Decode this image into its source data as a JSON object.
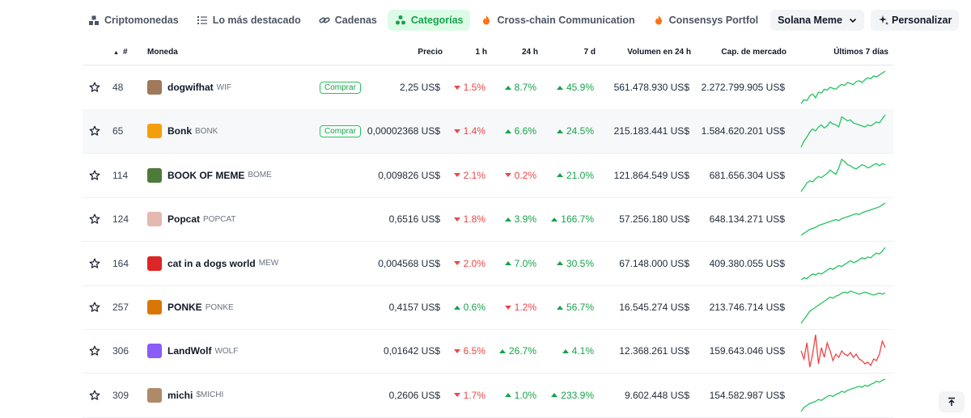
{
  "tabs": [
    {
      "label": "Criptomonedas",
      "icon": "cryptocurrencies-icon"
    },
    {
      "label": "Lo más destacado",
      "icon": "list-icon"
    },
    {
      "label": "Cadenas",
      "icon": "chain-link-icon"
    },
    {
      "label": "Categorías",
      "icon": "categories-icon",
      "active": true
    },
    {
      "label": "Cross-chain Communication",
      "icon": "fire-icon"
    },
    {
      "label": "Consensys Portfol",
      "icon": "fire-icon"
    }
  ],
  "dropdown": {
    "label": "Solana Meme"
  },
  "customize": {
    "label": "Personalizar"
  },
  "table": {
    "headers": {
      "rank": "#",
      "coin": "Moneda",
      "price": "Precio",
      "h1": "1 h",
      "h24": "24 h",
      "d7": "7 d",
      "volume": "Volumen en 24 h",
      "market_cap": "Cap. de mercado",
      "last7": "Últimos 7 días"
    },
    "buy_label": "Comprar",
    "rows": [
      {
        "rank": "48",
        "name": "dogwifhat",
        "symbol": "WIF",
        "buy": true,
        "price": "2,25 US$",
        "h1": "1.5%",
        "h1_dir": "down",
        "h24": "8.7%",
        "h24_dir": "up",
        "d7": "45.9%",
        "d7_dir": "up",
        "volume": "561.478.930 US$",
        "cap": "2.272.799.905 US$",
        "trend": "up",
        "spark": [
          30,
          34,
          33,
          38,
          40,
          36,
          42,
          41,
          45,
          44,
          47,
          46,
          45,
          48,
          50,
          49,
          52,
          51,
          50,
          53,
          54,
          52,
          55,
          57,
          56,
          59,
          58,
          60,
          62,
          64
        ]
      },
      {
        "rank": "65",
        "name": "Bonk",
        "symbol": "BONK",
        "buy": true,
        "price": "0,00002368 US$",
        "h1": "1.4%",
        "h1_dir": "down",
        "h24": "6.6%",
        "h24_dir": "up",
        "d7": "24.5%",
        "d7_dir": "up",
        "volume": "215.183.441 US$",
        "cap": "1.584.620.201 US$",
        "trend": "up",
        "spark": [
          30,
          36,
          40,
          45,
          48,
          46,
          50,
          52,
          49,
          51,
          55,
          53,
          52,
          50,
          60,
          58,
          56,
          57,
          54,
          53,
          52,
          51,
          50,
          52,
          51,
          53,
          55,
          54,
          58,
          62
        ]
      },
      {
        "rank": "114",
        "name": "BOOK OF MEME",
        "symbol": "BOME",
        "buy": false,
        "price": "0,009826 US$",
        "h1": "2.1%",
        "h1_dir": "down",
        "h24": "0.2%",
        "h24_dir": "down",
        "d7": "21.0%",
        "d7_dir": "up",
        "volume": "121.864.549 US$",
        "cap": "681.656.304 US$",
        "trend": "up",
        "spark": [
          30,
          34,
          38,
          40,
          39,
          42,
          44,
          43,
          45,
          47,
          50,
          48,
          46,
          52,
          60,
          58,
          55,
          54,
          52,
          51,
          53,
          55,
          54,
          52,
          53,
          55,
          56,
          54,
          56,
          55
        ]
      },
      {
        "rank": "124",
        "name": "Popcat",
        "symbol": "POPCAT",
        "buy": false,
        "price": "0,6516 US$",
        "h1": "1.8%",
        "h1_dir": "down",
        "h24": "3.9%",
        "h24_dir": "up",
        "d7": "166.7%",
        "d7_dir": "up",
        "volume": "57.256.180 US$",
        "cap": "648.134.271 US$",
        "trend": "up",
        "spark": [
          30,
          32,
          34,
          36,
          37,
          38,
          40,
          41,
          42,
          43,
          44,
          45,
          46,
          45,
          47,
          48,
          49,
          50,
          51,
          52,
          51,
          53,
          54,
          55,
          56,
          57,
          58,
          59,
          61,
          63
        ]
      },
      {
        "rank": "164",
        "name": "cat in a dogs world",
        "symbol": "MEW",
        "buy": false,
        "price": "0,004568 US$",
        "h1": "2.0%",
        "h1_dir": "down",
        "h24": "7.0%",
        "h24_dir": "up",
        "d7": "30.5%",
        "d7_dir": "up",
        "volume": "67.148.000 US$",
        "cap": "409.380.055 US$",
        "trend": "up",
        "spark": [
          30,
          32,
          31,
          34,
          36,
          35,
          37,
          36,
          38,
          40,
          42,
          41,
          43,
          45,
          44,
          46,
          48,
          50,
          48,
          49,
          51,
          53,
          52,
          54,
          53,
          56,
          58,
          57,
          60,
          64
        ]
      },
      {
        "rank": "257",
        "name": "PONKE",
        "symbol": "PONKE",
        "buy": false,
        "price": "0,4157 US$",
        "h1": "0.6%",
        "h1_dir": "up",
        "h24": "1.2%",
        "h24_dir": "down",
        "d7": "56.7%",
        "d7_dir": "up",
        "volume": "16.545.274 US$",
        "cap": "213.746.714 US$",
        "trend": "up",
        "spark": [
          30,
          34,
          38,
          42,
          44,
          46,
          48,
          50,
          52,
          54,
          56,
          55,
          57,
          58,
          60,
          61,
          60,
          62,
          61,
          60,
          59,
          60,
          61,
          60,
          59,
          58,
          59,
          60,
          59,
          60
        ]
      },
      {
        "rank": "306",
        "name": "LandWolf",
        "symbol": "WOLF",
        "buy": false,
        "price": "0,01642 US$",
        "h1": "6.5%",
        "h1_dir": "down",
        "h24": "26.7%",
        "h24_dir": "up",
        "d7": "4.1%",
        "d7_dir": "up",
        "volume": "12.368.261 US$",
        "cap": "159.643.046 US$",
        "trend": "down",
        "spark": [
          50,
          45,
          55,
          40,
          48,
          60,
          42,
          52,
          46,
          55,
          50,
          44,
          48,
          46,
          50,
          48,
          47,
          49,
          46,
          48,
          45,
          44,
          42,
          43,
          41,
          45,
          44,
          48,
          56,
          52
        ]
      },
      {
        "rank": "309",
        "name": "michi",
        "symbol": "$MICHI",
        "buy": false,
        "price": "0,2606 US$",
        "h1": "1.7%",
        "h1_dir": "down",
        "h24": "1.0%",
        "h24_dir": "up",
        "d7": "233.9%",
        "d7_dir": "up",
        "volume": "9.602.448 US$",
        "cap": "154.582.987 US$",
        "trend": "up",
        "spark": [
          30,
          34,
          36,
          38,
          39,
          40,
          42,
          41,
          43,
          45,
          46,
          45,
          47,
          48,
          50,
          49,
          51,
          52,
          53,
          54,
          55,
          54,
          56,
          55,
          57,
          58,
          60,
          59,
          61,
          62
        ]
      }
    ]
  },
  "colors": {
    "up": "#16a34a",
    "down": "#ef4444",
    "accent_bg": "#dcfce7"
  },
  "logos": [
    "#a0785a",
    "#f59e0b",
    "#4d7c3a",
    "#e5b8b0",
    "#dc2626",
    "#d97706",
    "#8b5cf6",
    "#b08968"
  ]
}
